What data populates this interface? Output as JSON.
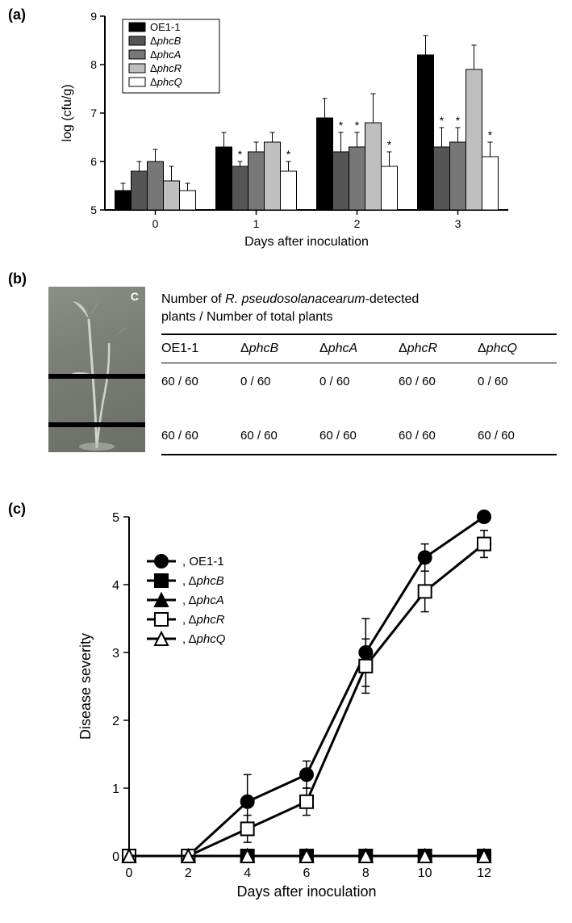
{
  "panelA": {
    "label": "(a)",
    "type": "bar",
    "ylabel": "log (cfu/g)",
    "xlabel": "Days after inoculation",
    "ylim": [
      5,
      9
    ],
    "ytick_step": 1,
    "categories": [
      "0",
      "1",
      "2",
      "3"
    ],
    "series": [
      {
        "name": "OE1-1",
        "color": "#000000",
        "values": [
          5.4,
          6.3,
          6.9,
          8.2
        ],
        "errors": [
          0.15,
          0.3,
          0.4,
          0.4
        ],
        "stars": [
          false,
          false,
          false,
          false
        ],
        "italic": false
      },
      {
        "name": "ΔphcB",
        "color": "#555555",
        "values": [
          5.8,
          5.9,
          6.2,
          6.3
        ],
        "errors": [
          0.2,
          0.1,
          0.4,
          0.4
        ],
        "stars": [
          false,
          true,
          true,
          true
        ],
        "italic": true,
        "prefix": "Δ"
      },
      {
        "name": "ΔphcA",
        "color": "#777777",
        "values": [
          6.0,
          6.2,
          6.3,
          6.4
        ],
        "errors": [
          0.25,
          0.2,
          0.3,
          0.3
        ],
        "stars": [
          false,
          false,
          true,
          true
        ],
        "italic": true,
        "prefix": "Δ"
      },
      {
        "name": "ΔphcR",
        "color": "#bfbfbf",
        "values": [
          5.6,
          6.4,
          6.8,
          7.9
        ],
        "errors": [
          0.3,
          0.2,
          0.6,
          0.5
        ],
        "stars": [
          false,
          false,
          false,
          false
        ],
        "italic": true,
        "prefix": "Δ"
      },
      {
        "name": "ΔphcQ",
        "color": "#ffffff",
        "values": [
          5.4,
          5.8,
          5.9,
          6.1
        ],
        "errors": [
          0.15,
          0.2,
          0.3,
          0.3
        ],
        "stars": [
          false,
          true,
          true,
          true
        ],
        "italic": true,
        "prefix": "Δ"
      }
    ],
    "bar_width": 0.16,
    "label_fontsize": 16,
    "tick_fontsize": 14,
    "legend_fontsize": 13
  },
  "panelB": {
    "label": "(b)",
    "plant_letter": "C",
    "title_line1": "Number of ",
    "title_italic": "R. pseudosolanacearum",
    "title_line1_cont": "-detected",
    "title_line2": "plants / Number of total plants",
    "columns": [
      "OE1-1",
      "ΔphcB",
      "ΔphcA",
      "ΔphcR",
      "ΔphcQ"
    ],
    "columns_italic": [
      false,
      true,
      true,
      true,
      true
    ],
    "rows": [
      [
        "60 / 60",
        "0 / 60",
        "0 / 60",
        "60 / 60",
        "0 / 60"
      ],
      [
        "60 / 60",
        "60 / 60",
        "60 / 60",
        "60 / 60",
        "60 / 60"
      ]
    ]
  },
  "panelC": {
    "label": "(c)",
    "type": "line",
    "ylabel": "Disease severity",
    "xlabel": "Days after inoculation",
    "ylim": [
      0,
      5
    ],
    "ytick_step": 1,
    "xlim": [
      0,
      12
    ],
    "xtick_step": 2,
    "series": [
      {
        "name": "OE1-1",
        "marker": "circle",
        "fill": "#000000",
        "x": [
          0,
          2,
          4,
          6,
          8,
          10,
          12
        ],
        "y": [
          0,
          0,
          0.8,
          1.2,
          3.0,
          4.4,
          5.0
        ],
        "err": [
          0,
          0,
          0.4,
          0.2,
          0.5,
          0.2,
          0
        ],
        "italic": false
      },
      {
        "name": "ΔphcB",
        "marker": "square",
        "fill": "#000000",
        "x": [
          0,
          2,
          4,
          6,
          8,
          10,
          12
        ],
        "y": [
          0,
          0,
          0,
          0,
          0,
          0,
          0
        ],
        "err": [
          0,
          0,
          0,
          0,
          0,
          0,
          0
        ],
        "italic": true
      },
      {
        "name": "ΔphcA",
        "marker": "triangle",
        "fill": "#000000",
        "x": [
          0,
          2,
          4,
          6,
          8,
          10,
          12
        ],
        "y": [
          0,
          0,
          0,
          0,
          0,
          0,
          0
        ],
        "err": [
          0,
          0,
          0,
          0,
          0,
          0,
          0
        ],
        "italic": true
      },
      {
        "name": "ΔphcR",
        "marker": "square",
        "fill": "#ffffff",
        "x": [
          0,
          2,
          4,
          6,
          8,
          10,
          12
        ],
        "y": [
          0,
          0,
          0.4,
          0.8,
          2.8,
          3.9,
          4.6
        ],
        "err": [
          0,
          0,
          0.2,
          0.2,
          0.4,
          0.3,
          0.2
        ],
        "italic": true
      },
      {
        "name": "ΔphcQ",
        "marker": "triangle",
        "fill": "#ffffff",
        "x": [
          0,
          2,
          4,
          6,
          8,
          10,
          12
        ],
        "y": [
          0,
          0,
          0,
          0,
          0,
          0,
          0
        ],
        "err": [
          0,
          0,
          0,
          0,
          0,
          0,
          0
        ],
        "italic": true
      }
    ],
    "line_width": 3,
    "marker_size": 8,
    "label_fontsize": 18,
    "tick_fontsize": 16,
    "legend_fontsize": 15
  }
}
